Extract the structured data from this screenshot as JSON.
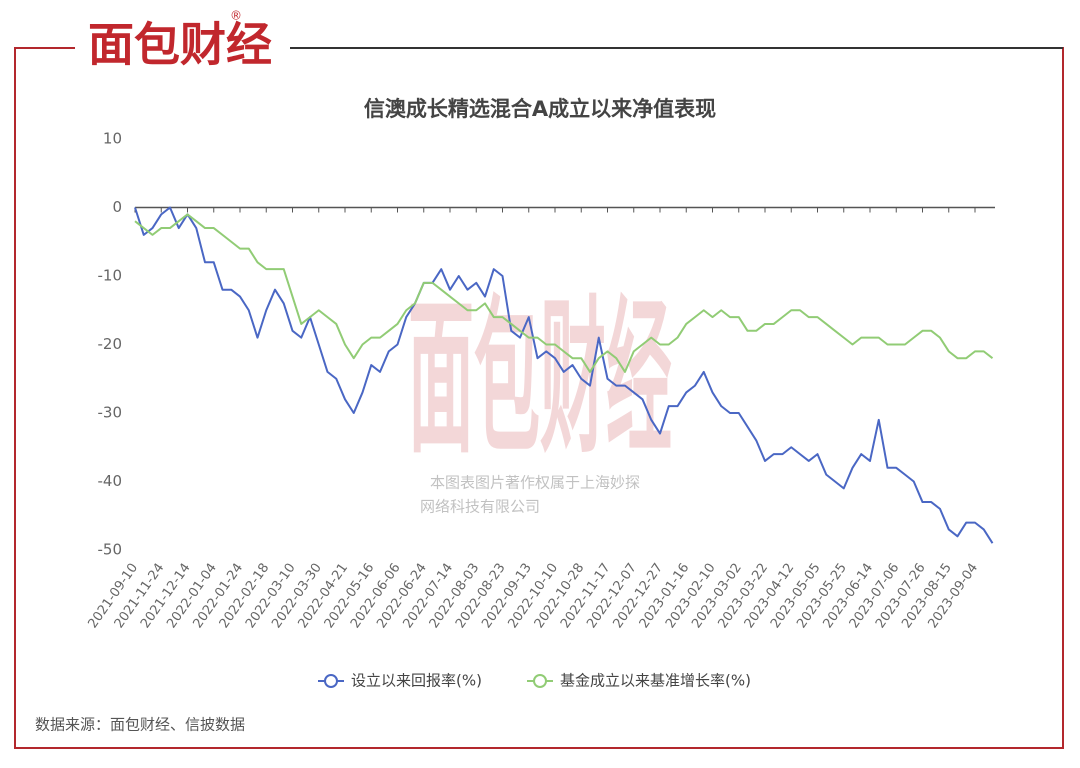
{
  "logo": "面包财经",
  "registered": "®",
  "watermark": [
    "本图表图片著作权属于上海妙探",
    "网络科技有限公司"
  ],
  "source": "数据来源：面包财经、信披数据",
  "chart_data": {
    "type": "line",
    "title": "信澳成长精选混合A成立以来净值表现",
    "categories": [
      "2021-09-10",
      null,
      null,
      "2021-11-24",
      null,
      null,
      "2021-12-14",
      null,
      null,
      "2022-01-04",
      null,
      null,
      "2022-01-24",
      null,
      null,
      "2022-02-18",
      null,
      null,
      "2022-03-10",
      null,
      null,
      "2022-03-30",
      null,
      null,
      "2022-04-21",
      null,
      null,
      "2022-05-16",
      null,
      null,
      "2022-06-06",
      null,
      null,
      "2022-06-24",
      null,
      null,
      "2022-07-14",
      null,
      null,
      "2022-08-03",
      null,
      null,
      "2022-08-23",
      null,
      null,
      "2022-09-13",
      null,
      null,
      "2022-10-10",
      null,
      null,
      "2022-10-28",
      null,
      null,
      "2022-11-17",
      null,
      null,
      "2022-12-07",
      null,
      null,
      "2022-12-27",
      null,
      null,
      "2023-01-16",
      null,
      null,
      "2023-02-10",
      null,
      null,
      "2023-03-02",
      null,
      null,
      "2023-03-22",
      null,
      null,
      "2023-04-12",
      null,
      null,
      "2023-05-05",
      null,
      null,
      "2023-05-25",
      null,
      null,
      "2023-06-14",
      null,
      null,
      "2023-07-06",
      null,
      null,
      "2023-07-26",
      null,
      null,
      "2023-08-15",
      null,
      null,
      "2023-09-04",
      null,
      null
    ],
    "series": [
      {
        "name": "设立以来回报率(%)",
        "color": "#4a67c4",
        "values": [
          0,
          -4,
          -3,
          -1,
          0,
          -3,
          -1,
          -3,
          -8,
          -8,
          -12,
          -12,
          -13,
          -15,
          -19,
          -15,
          -12,
          -14,
          -18,
          -19,
          -16,
          -20,
          -24,
          -25,
          -28,
          -30,
          -27,
          -23,
          -24,
          -21,
          -20,
          -16,
          -14,
          -11,
          -11,
          -9,
          -12,
          -10,
          -12,
          -11,
          -13,
          -9,
          -10,
          -18,
          -19,
          -16,
          -22,
          -21,
          -22,
          -24,
          -23,
          -25,
          -26,
          -19,
          -25,
          -26,
          -26,
          -27,
          -28,
          -31,
          -33,
          -29,
          -29,
          -27,
          -26,
          -24,
          -27,
          -29,
          -30,
          -30,
          -32,
          -34,
          -37,
          -36,
          -36,
          -35,
          -36,
          -37,
          -36,
          -39,
          -40,
          -41,
          -38,
          -36,
          -37,
          -31,
          -38,
          -38,
          -39,
          -40,
          -43,
          -43,
          -44,
          -47,
          -48,
          -46,
          -46,
          -47,
          -49
        ]
      },
      {
        "name": "基金成立以来基准增长率(%)",
        "color": "#91cc75",
        "values": [
          -2,
          -3,
          -4,
          -3,
          -3,
          -2,
          -1,
          -2,
          -3,
          -3,
          -4,
          -5,
          -6,
          -6,
          -8,
          -9,
          -9,
          -9,
          -13,
          -17,
          -16,
          -15,
          -16,
          -17,
          -20,
          -22,
          -20,
          -19,
          -19,
          -18,
          -17,
          -15,
          -14,
          -11,
          -11,
          -12,
          -13,
          -14,
          -15,
          -15,
          -14,
          -16,
          -16,
          -17,
          -18,
          -19,
          -19,
          -20,
          -20,
          -21,
          -22,
          -22,
          -24,
          -22,
          -21,
          -22,
          -24,
          -21,
          -20,
          -19,
          -20,
          -20,
          -19,
          -17,
          -16,
          -15,
          -16,
          -15,
          -16,
          -16,
          -18,
          -18,
          -17,
          -17,
          -16,
          -15,
          -15,
          -16,
          -16,
          -17,
          -18,
          -19,
          -20,
          -19,
          -19,
          -19,
          -20,
          -20,
          -20,
          -19,
          -18,
          -18,
          -19,
          -21,
          -22,
          -22,
          -21,
          -21,
          -22
        ]
      }
    ],
    "ylim": [
      -50,
      10
    ],
    "yticks": [
      -50,
      -40,
      -30,
      -20,
      -10,
      0,
      10
    ],
    "grid": false
  }
}
